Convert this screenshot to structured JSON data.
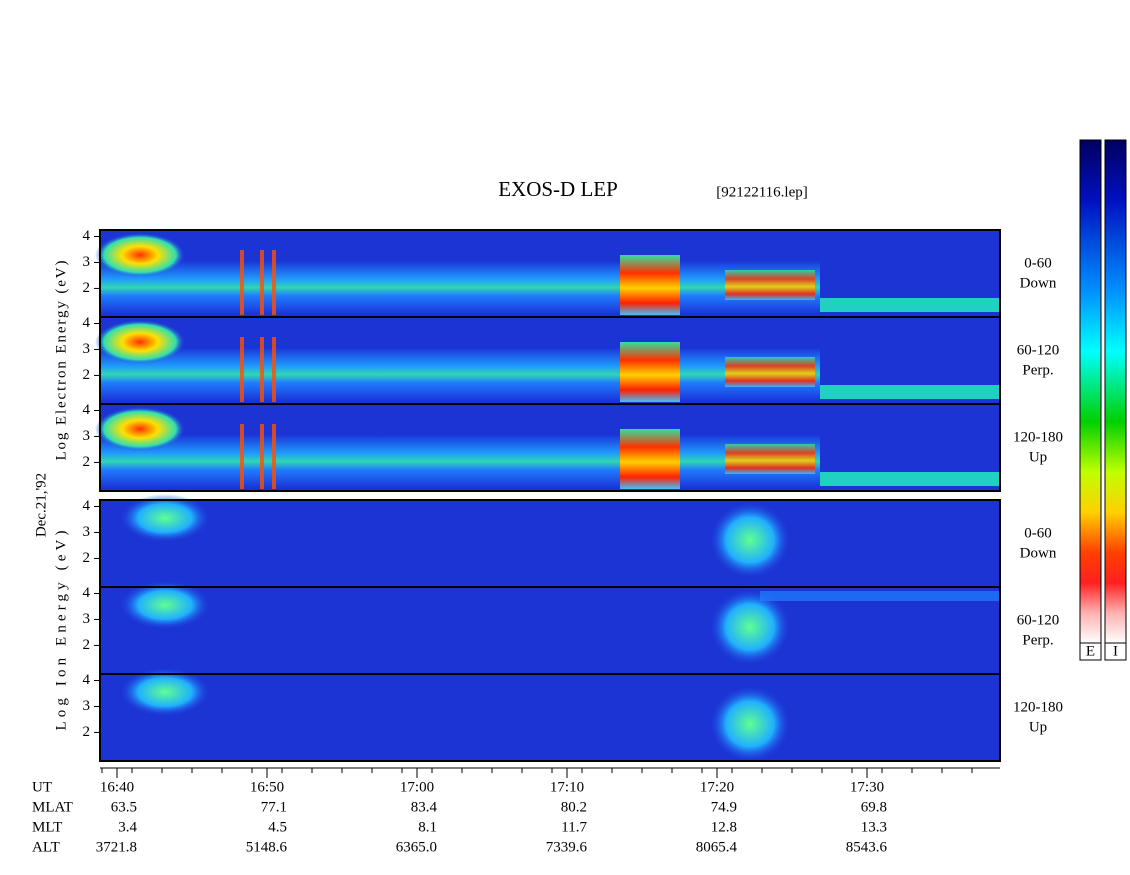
{
  "chart_data": {
    "type": "spectrogram",
    "title": "EXOS-D LEP",
    "file": "[92122116.lep]",
    "date": "Dec.21,'92",
    "groups": [
      {
        "axis_label": "Log Electron Energy (eV)",
        "colorbar": "E",
        "panels": [
          {
            "angle": "0-60",
            "direction": "Down"
          },
          {
            "angle": "60-120",
            "direction": "Perp."
          },
          {
            "angle": "120-180",
            "direction": "Up"
          }
        ]
      },
      {
        "axis_label": "Log Ion Energy (eV)",
        "colorbar": "I",
        "panels": [
          {
            "angle": "0-60",
            "direction": "Down"
          },
          {
            "angle": "60-120",
            "direction": "Perp."
          },
          {
            "angle": "120-180",
            "direction": "Up"
          }
        ]
      }
    ],
    "ylim": [
      0.9,
      4.25
    ],
    "yticks": [
      2,
      3,
      4
    ],
    "table": {
      "rows": [
        {
          "label": "UT",
          "values": [
            "16:40",
            "16:50",
            "17:00",
            "17:10",
            "17:20",
            "17:30"
          ]
        },
        {
          "label": "MLAT",
          "values": [
            "63.5",
            "77.1",
            "83.4",
            "80.2",
            "74.9",
            "69.8"
          ]
        },
        {
          "label": "MLT",
          "values": [
            "3.4",
            "4.5",
            "8.1",
            "11.7",
            "12.8",
            "13.3"
          ]
        },
        {
          "label": "ALT",
          "values": [
            "3721.8",
            "5148.6",
            "6365.0",
            "7339.6",
            "8065.4",
            "8543.6"
          ]
        }
      ]
    }
  }
}
